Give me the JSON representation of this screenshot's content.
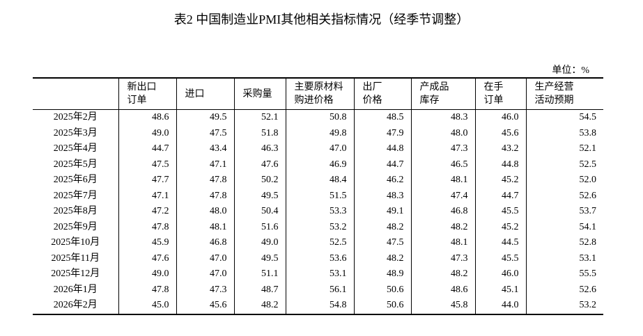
{
  "title": "表2 中国制造业PMI其他相关指标情况（经季节调整）",
  "unit": "单位：%",
  "table": {
    "header": [
      [],
      [
        "新出口",
        "订单"
      ],
      [
        "进口"
      ],
      [
        "采购量"
      ],
      [
        "主要原材料",
        "购进价格"
      ],
      [
        "出厂",
        "价格"
      ],
      [
        "产成品",
        "库存"
      ],
      [
        "在手",
        "订单"
      ],
      [
        "生产经营",
        "活动预期"
      ]
    ],
    "rows": [
      [
        "2025年2月",
        "48.6",
        "49.5",
        "52.1",
        "50.8",
        "48.5",
        "48.3",
        "46.0",
        "54.5"
      ],
      [
        "2025年3月",
        "49.0",
        "47.5",
        "51.8",
        "49.8",
        "47.9",
        "48.0",
        "45.6",
        "53.8"
      ],
      [
        "2025年4月",
        "44.7",
        "43.4",
        "46.3",
        "47.0",
        "44.8",
        "47.3",
        "43.2",
        "52.1"
      ],
      [
        "2025年5月",
        "47.5",
        "47.1",
        "47.6",
        "46.9",
        "44.7",
        "46.5",
        "44.8",
        "52.5"
      ],
      [
        "2025年6月",
        "47.7",
        "47.8",
        "50.2",
        "48.4",
        "46.2",
        "48.1",
        "45.2",
        "52.0"
      ],
      [
        "2025年7月",
        "47.1",
        "47.8",
        "49.5",
        "51.5",
        "48.3",
        "47.4",
        "44.7",
        "52.6"
      ],
      [
        "2025年8月",
        "47.2",
        "48.0",
        "50.4",
        "53.3",
        "49.1",
        "46.8",
        "45.5",
        "53.7"
      ],
      [
        "2025年9月",
        "47.8",
        "48.1",
        "51.6",
        "53.2",
        "48.2",
        "48.2",
        "45.2",
        "54.1"
      ],
      [
        "2025年10月",
        "45.9",
        "46.8",
        "49.0",
        "52.5",
        "47.5",
        "48.1",
        "44.5",
        "52.8"
      ],
      [
        "2025年11月",
        "47.6",
        "47.0",
        "49.5",
        "53.6",
        "48.2",
        "47.3",
        "45.5",
        "53.1"
      ],
      [
        "2025年12月",
        "49.0",
        "47.0",
        "51.1",
        "53.1",
        "48.9",
        "48.2",
        "46.0",
        "55.5"
      ],
      [
        "2026年1月",
        "47.8",
        "47.3",
        "48.7",
        "56.1",
        "50.6",
        "48.6",
        "45.1",
        "52.6"
      ],
      [
        "2026年2月",
        "45.0",
        "45.6",
        "48.2",
        "54.8",
        "50.6",
        "45.8",
        "44.0",
        "53.2"
      ]
    ]
  }
}
